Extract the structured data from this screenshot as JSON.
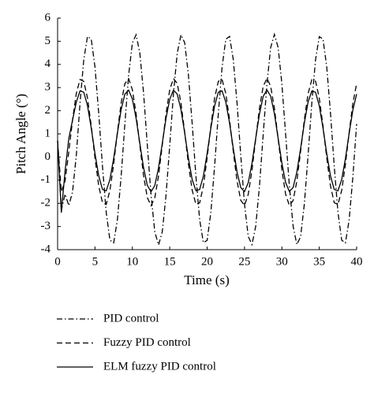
{
  "chart_data": {
    "type": "line",
    "xlabel": "Time (s)",
    "ylabel": "Pitch Angle (°)",
    "x": [
      0,
      0.5,
      1,
      1.5,
      2,
      2.5,
      3,
      3.5,
      4,
      4.5,
      5,
      5.5,
      6,
      6.5,
      7,
      7.5,
      8,
      8.5,
      9,
      9.5,
      10,
      10.5,
      11,
      11.5,
      12,
      12.5,
      13,
      13.5,
      14,
      14.5,
      15,
      15.5,
      16,
      16.5,
      17,
      17.5,
      18,
      18.5,
      19,
      19.5,
      20,
      20.5,
      21,
      21.5,
      22,
      22.5,
      23,
      23.5,
      24,
      24.5,
      25,
      25.5,
      26,
      26.5,
      27,
      27.5,
      28,
      28.5,
      29,
      29.5,
      30,
      30.5,
      31,
      31.5,
      32,
      32.5,
      33,
      33.5,
      34,
      34.5,
      35,
      35.5,
      36,
      36.5,
      37,
      37.5,
      38,
      38.5,
      39,
      39.5,
      40
    ],
    "series": [
      {
        "name": "PID control",
        "color": "#000000",
        "linestyle": "dashdot",
        "values": [
          0.7,
          -2.3,
          -1.6,
          -2.1,
          -1.5,
          0.06,
          2.33,
          4.2,
          5.21,
          5.09,
          3.89,
          1.89,
          -0.39,
          -2.38,
          -3.59,
          -3.71,
          -2.7,
          -0.83,
          1.44,
          3.53,
          4.93,
          5.28,
          4.49,
          2.76,
          0.52,
          -1.65,
          -3.23,
          -3.8,
          -3.23,
          -1.66,
          0.51,
          2.75,
          4.48,
          5.28,
          4.94,
          3.54,
          1.45,
          -0.82,
          -2.7,
          -3.7,
          -3.6,
          -2.39,
          -0.4,
          1.88,
          3.88,
          5.09,
          5.21,
          4.21,
          2.34,
          0.07,
          -2.03,
          -3.43,
          -3.78,
          -2.99,
          -1.26,
          0.97,
          3.15,
          4.73,
          5.3,
          4.73,
          3.16,
          0.99,
          -1.24,
          -2.98,
          -3.78,
          -3.44,
          -2.04,
          0.05,
          2.32,
          4.2,
          5.2,
          5.1,
          3.89,
          1.9,
          -0.38,
          -2.38,
          -3.59,
          -3.71,
          -2.71,
          -0.84,
          1.43
        ]
      },
      {
        "name": "Fuzzy PID control",
        "color": "#000000",
        "linestyle": "dashed",
        "values": [
          0.7,
          -1.5,
          -1.03,
          0.23,
          1.6,
          2.74,
          3.35,
          3.27,
          2.55,
          1.34,
          -0.04,
          -1.24,
          -1.97,
          -2.05,
          -1.44,
          -0.3,
          1.07,
          2.33,
          3.17,
          3.39,
          2.91,
          1.86,
          0.51,
          -0.8,
          -1.75,
          -2.1,
          -1.76,
          -0.81,
          0.51,
          1.86,
          2.91,
          3.39,
          3.18,
          2.34,
          1.07,
          -0.3,
          -1.43,
          -2.04,
          -1.98,
          -1.25,
          -0.04,
          1.33,
          2.54,
          3.27,
          3.35,
          2.74,
          1.61,
          0.24,
          -1.03,
          -1.87,
          -2.09,
          -1.61,
          -0.57,
          0.78,
          2.1,
          3.05,
          3.4,
          3.06,
          2.11,
          0.79,
          -0.55,
          -1.61,
          -2.09,
          -1.88,
          -1.04,
          0.23,
          1.6,
          2.73,
          3.34,
          3.28,
          2.55,
          1.34,
          -0.03,
          -1.24,
          -1.97,
          -2.05,
          -1.44,
          -0.31,
          1.06,
          2.33,
          3.17
        ]
      },
      {
        "name": "ELM fuzzy PID control",
        "color": "#000000",
        "linestyle": "solid",
        "values": [
          0.7,
          -2.4,
          -0.6,
          0.8,
          1.6,
          2.37,
          2.86,
          2.8,
          2.22,
          1.25,
          0.15,
          -0.81,
          -1.4,
          -1.46,
          -0.97,
          -0.06,
          1.03,
          2.05,
          2.72,
          2.89,
          2.51,
          1.67,
          0.59,
          -0.46,
          -1.22,
          -1.5,
          -1.23,
          -0.47,
          0.59,
          1.67,
          2.5,
          2.89,
          2.72,
          2.05,
          1.04,
          -0.06,
          -0.97,
          -1.45,
          -1.4,
          -0.82,
          0.15,
          1.25,
          2.21,
          2.8,
          2.86,
          2.37,
          1.47,
          0.37,
          -0.64,
          -1.32,
          -1.49,
          -1.11,
          -0.27,
          0.81,
          1.86,
          2.62,
          2.9,
          2.63,
          1.87,
          0.81,
          -0.26,
          -1.1,
          -1.49,
          -1.32,
          -0.65,
          0.36,
          1.46,
          2.37,
          2.85,
          2.8,
          2.22,
          1.25,
          0.15,
          -0.81,
          -1.4,
          -1.46,
          -0.97,
          -0.07,
          1.03,
          2.04,
          2.72
        ]
      }
    ],
    "xlim": [
      0,
      40
    ],
    "xticks": [
      0,
      5,
      10,
      15,
      20,
      25,
      30,
      35,
      40
    ],
    "ylim": [
      -4,
      6
    ],
    "yticks": [
      -4,
      -3,
      -2,
      -1,
      0,
      1,
      2,
      3,
      4,
      5,
      6
    ],
    "legend": "below"
  }
}
